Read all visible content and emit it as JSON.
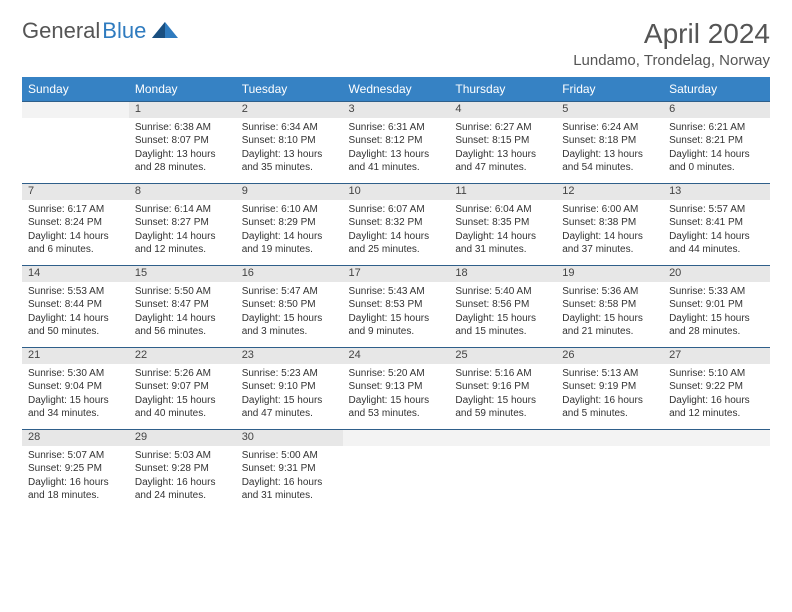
{
  "logo": {
    "word1": "General",
    "word2": "Blue"
  },
  "title": "April 2024",
  "location": "Lundamo, Trondelag, Norway",
  "colors": {
    "header_bg": "#3682c4",
    "header_text": "#ffffff",
    "daynum_bg": "#e7e7e7",
    "border": "#2f5f8a",
    "logo_gray": "#555555",
    "logo_blue": "#2f7bbf"
  },
  "weekdays": [
    "Sunday",
    "Monday",
    "Tuesday",
    "Wednesday",
    "Thursday",
    "Friday",
    "Saturday"
  ],
  "weeks": [
    {
      "nums": [
        "",
        "1",
        "2",
        "3",
        "4",
        "5",
        "6"
      ],
      "cells": [
        null,
        {
          "sr": "Sunrise: 6:38 AM",
          "ss": "Sunset: 8:07 PM",
          "dl": "Daylight: 13 hours and 28 minutes."
        },
        {
          "sr": "Sunrise: 6:34 AM",
          "ss": "Sunset: 8:10 PM",
          "dl": "Daylight: 13 hours and 35 minutes."
        },
        {
          "sr": "Sunrise: 6:31 AM",
          "ss": "Sunset: 8:12 PM",
          "dl": "Daylight: 13 hours and 41 minutes."
        },
        {
          "sr": "Sunrise: 6:27 AM",
          "ss": "Sunset: 8:15 PM",
          "dl": "Daylight: 13 hours and 47 minutes."
        },
        {
          "sr": "Sunrise: 6:24 AM",
          "ss": "Sunset: 8:18 PM",
          "dl": "Daylight: 13 hours and 54 minutes."
        },
        {
          "sr": "Sunrise: 6:21 AM",
          "ss": "Sunset: 8:21 PM",
          "dl": "Daylight: 14 hours and 0 minutes."
        }
      ]
    },
    {
      "nums": [
        "7",
        "8",
        "9",
        "10",
        "11",
        "12",
        "13"
      ],
      "cells": [
        {
          "sr": "Sunrise: 6:17 AM",
          "ss": "Sunset: 8:24 PM",
          "dl": "Daylight: 14 hours and 6 minutes."
        },
        {
          "sr": "Sunrise: 6:14 AM",
          "ss": "Sunset: 8:27 PM",
          "dl": "Daylight: 14 hours and 12 minutes."
        },
        {
          "sr": "Sunrise: 6:10 AM",
          "ss": "Sunset: 8:29 PM",
          "dl": "Daylight: 14 hours and 19 minutes."
        },
        {
          "sr": "Sunrise: 6:07 AM",
          "ss": "Sunset: 8:32 PM",
          "dl": "Daylight: 14 hours and 25 minutes."
        },
        {
          "sr": "Sunrise: 6:04 AM",
          "ss": "Sunset: 8:35 PM",
          "dl": "Daylight: 14 hours and 31 minutes."
        },
        {
          "sr": "Sunrise: 6:00 AM",
          "ss": "Sunset: 8:38 PM",
          "dl": "Daylight: 14 hours and 37 minutes."
        },
        {
          "sr": "Sunrise: 5:57 AM",
          "ss": "Sunset: 8:41 PM",
          "dl": "Daylight: 14 hours and 44 minutes."
        }
      ]
    },
    {
      "nums": [
        "14",
        "15",
        "16",
        "17",
        "18",
        "19",
        "20"
      ],
      "cells": [
        {
          "sr": "Sunrise: 5:53 AM",
          "ss": "Sunset: 8:44 PM",
          "dl": "Daylight: 14 hours and 50 minutes."
        },
        {
          "sr": "Sunrise: 5:50 AM",
          "ss": "Sunset: 8:47 PM",
          "dl": "Daylight: 14 hours and 56 minutes."
        },
        {
          "sr": "Sunrise: 5:47 AM",
          "ss": "Sunset: 8:50 PM",
          "dl": "Daylight: 15 hours and 3 minutes."
        },
        {
          "sr": "Sunrise: 5:43 AM",
          "ss": "Sunset: 8:53 PM",
          "dl": "Daylight: 15 hours and 9 minutes."
        },
        {
          "sr": "Sunrise: 5:40 AM",
          "ss": "Sunset: 8:56 PM",
          "dl": "Daylight: 15 hours and 15 minutes."
        },
        {
          "sr": "Sunrise: 5:36 AM",
          "ss": "Sunset: 8:58 PM",
          "dl": "Daylight: 15 hours and 21 minutes."
        },
        {
          "sr": "Sunrise: 5:33 AM",
          "ss": "Sunset: 9:01 PM",
          "dl": "Daylight: 15 hours and 28 minutes."
        }
      ]
    },
    {
      "nums": [
        "21",
        "22",
        "23",
        "24",
        "25",
        "26",
        "27"
      ],
      "cells": [
        {
          "sr": "Sunrise: 5:30 AM",
          "ss": "Sunset: 9:04 PM",
          "dl": "Daylight: 15 hours and 34 minutes."
        },
        {
          "sr": "Sunrise: 5:26 AM",
          "ss": "Sunset: 9:07 PM",
          "dl": "Daylight: 15 hours and 40 minutes."
        },
        {
          "sr": "Sunrise: 5:23 AM",
          "ss": "Sunset: 9:10 PM",
          "dl": "Daylight: 15 hours and 47 minutes."
        },
        {
          "sr": "Sunrise: 5:20 AM",
          "ss": "Sunset: 9:13 PM",
          "dl": "Daylight: 15 hours and 53 minutes."
        },
        {
          "sr": "Sunrise: 5:16 AM",
          "ss": "Sunset: 9:16 PM",
          "dl": "Daylight: 15 hours and 59 minutes."
        },
        {
          "sr": "Sunrise: 5:13 AM",
          "ss": "Sunset: 9:19 PM",
          "dl": "Daylight: 16 hours and 5 minutes."
        },
        {
          "sr": "Sunrise: 5:10 AM",
          "ss": "Sunset: 9:22 PM",
          "dl": "Daylight: 16 hours and 12 minutes."
        }
      ]
    },
    {
      "nums": [
        "28",
        "29",
        "30",
        "",
        "",
        "",
        ""
      ],
      "cells": [
        {
          "sr": "Sunrise: 5:07 AM",
          "ss": "Sunset: 9:25 PM",
          "dl": "Daylight: 16 hours and 18 minutes."
        },
        {
          "sr": "Sunrise: 5:03 AM",
          "ss": "Sunset: 9:28 PM",
          "dl": "Daylight: 16 hours and 24 minutes."
        },
        {
          "sr": "Sunrise: 5:00 AM",
          "ss": "Sunset: 9:31 PM",
          "dl": "Daylight: 16 hours and 31 minutes."
        },
        null,
        null,
        null,
        null
      ]
    }
  ]
}
